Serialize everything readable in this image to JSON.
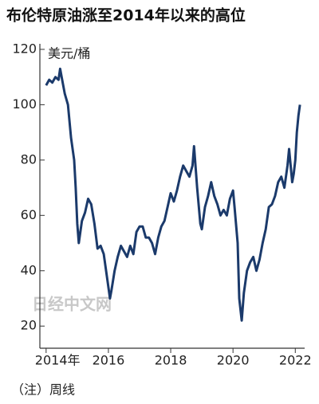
{
  "chart_data": {
    "type": "line",
    "title": "布伦特原油涨至2014年以来的高位",
    "y_label": "美元/桶",
    "note": "（注）周线",
    "watermark": "日经中文网",
    "x": [
      2014.0,
      2014.1,
      2014.2,
      2014.3,
      2014.4,
      2014.45,
      2014.5,
      2014.6,
      2014.7,
      2014.8,
      2014.9,
      2014.95,
      2015.0,
      2015.05,
      2015.15,
      2015.25,
      2015.35,
      2015.45,
      2015.55,
      2015.65,
      2015.75,
      2015.85,
      2015.95,
      2016.05,
      2016.1,
      2016.2,
      2016.3,
      2016.4,
      2016.5,
      2016.6,
      2016.7,
      2016.8,
      2016.9,
      2017.0,
      2017.1,
      2017.2,
      2017.3,
      2017.4,
      2017.5,
      2017.6,
      2017.7,
      2017.8,
      2017.9,
      2018.0,
      2018.1,
      2018.2,
      2018.3,
      2018.4,
      2018.5,
      2018.6,
      2018.7,
      2018.75,
      2018.85,
      2018.95,
      2019.0,
      2019.1,
      2019.2,
      2019.3,
      2019.4,
      2019.5,
      2019.6,
      2019.7,
      2019.8,
      2019.9,
      2020.0,
      2020.05,
      2020.15,
      2020.2,
      2020.28,
      2020.35,
      2020.45,
      2020.55,
      2020.65,
      2020.75,
      2020.85,
      2020.95,
      2021.05,
      2021.15,
      2021.25,
      2021.35,
      2021.45,
      2021.55,
      2021.65,
      2021.75,
      2021.8,
      2021.9,
      2021.95,
      2022.0,
      2022.05,
      2022.1,
      2022.15
    ],
    "series": [
      {
        "name": "布伦特原油",
        "color": "#1b3a6b",
        "values": [
          107,
          109,
          108,
          110,
          109,
          113,
          110,
          104,
          100,
          88,
          80,
          70,
          57,
          50,
          58,
          61,
          66,
          64,
          57,
          48,
          49,
          46,
          38,
          30,
          33,
          40,
          45,
          49,
          47,
          45,
          49,
          46,
          54,
          56,
          56,
          52,
          52,
          50,
          46,
          52,
          56,
          58,
          63,
          68,
          65,
          69,
          74,
          78,
          76,
          74,
          78,
          85,
          70,
          57,
          55,
          63,
          67,
          72,
          67,
          64,
          60,
          62,
          60,
          66,
          69,
          63,
          50,
          30,
          22,
          32,
          40,
          43,
          45,
          40,
          44,
          50,
          55,
          63,
          64,
          67,
          72,
          74,
          70,
          78,
          84,
          72,
          75,
          80,
          90,
          96,
          100
        ]
      }
    ],
    "xlim": [
      2013.8,
      2022.3
    ],
    "xticks": [
      {
        "value": 2014,
        "label": "2014年"
      },
      2016,
      2018,
      2020,
      2022
    ],
    "ylim": [
      12,
      122
    ],
    "yticks": [
      20,
      40,
      60,
      80,
      100,
      120
    ]
  }
}
